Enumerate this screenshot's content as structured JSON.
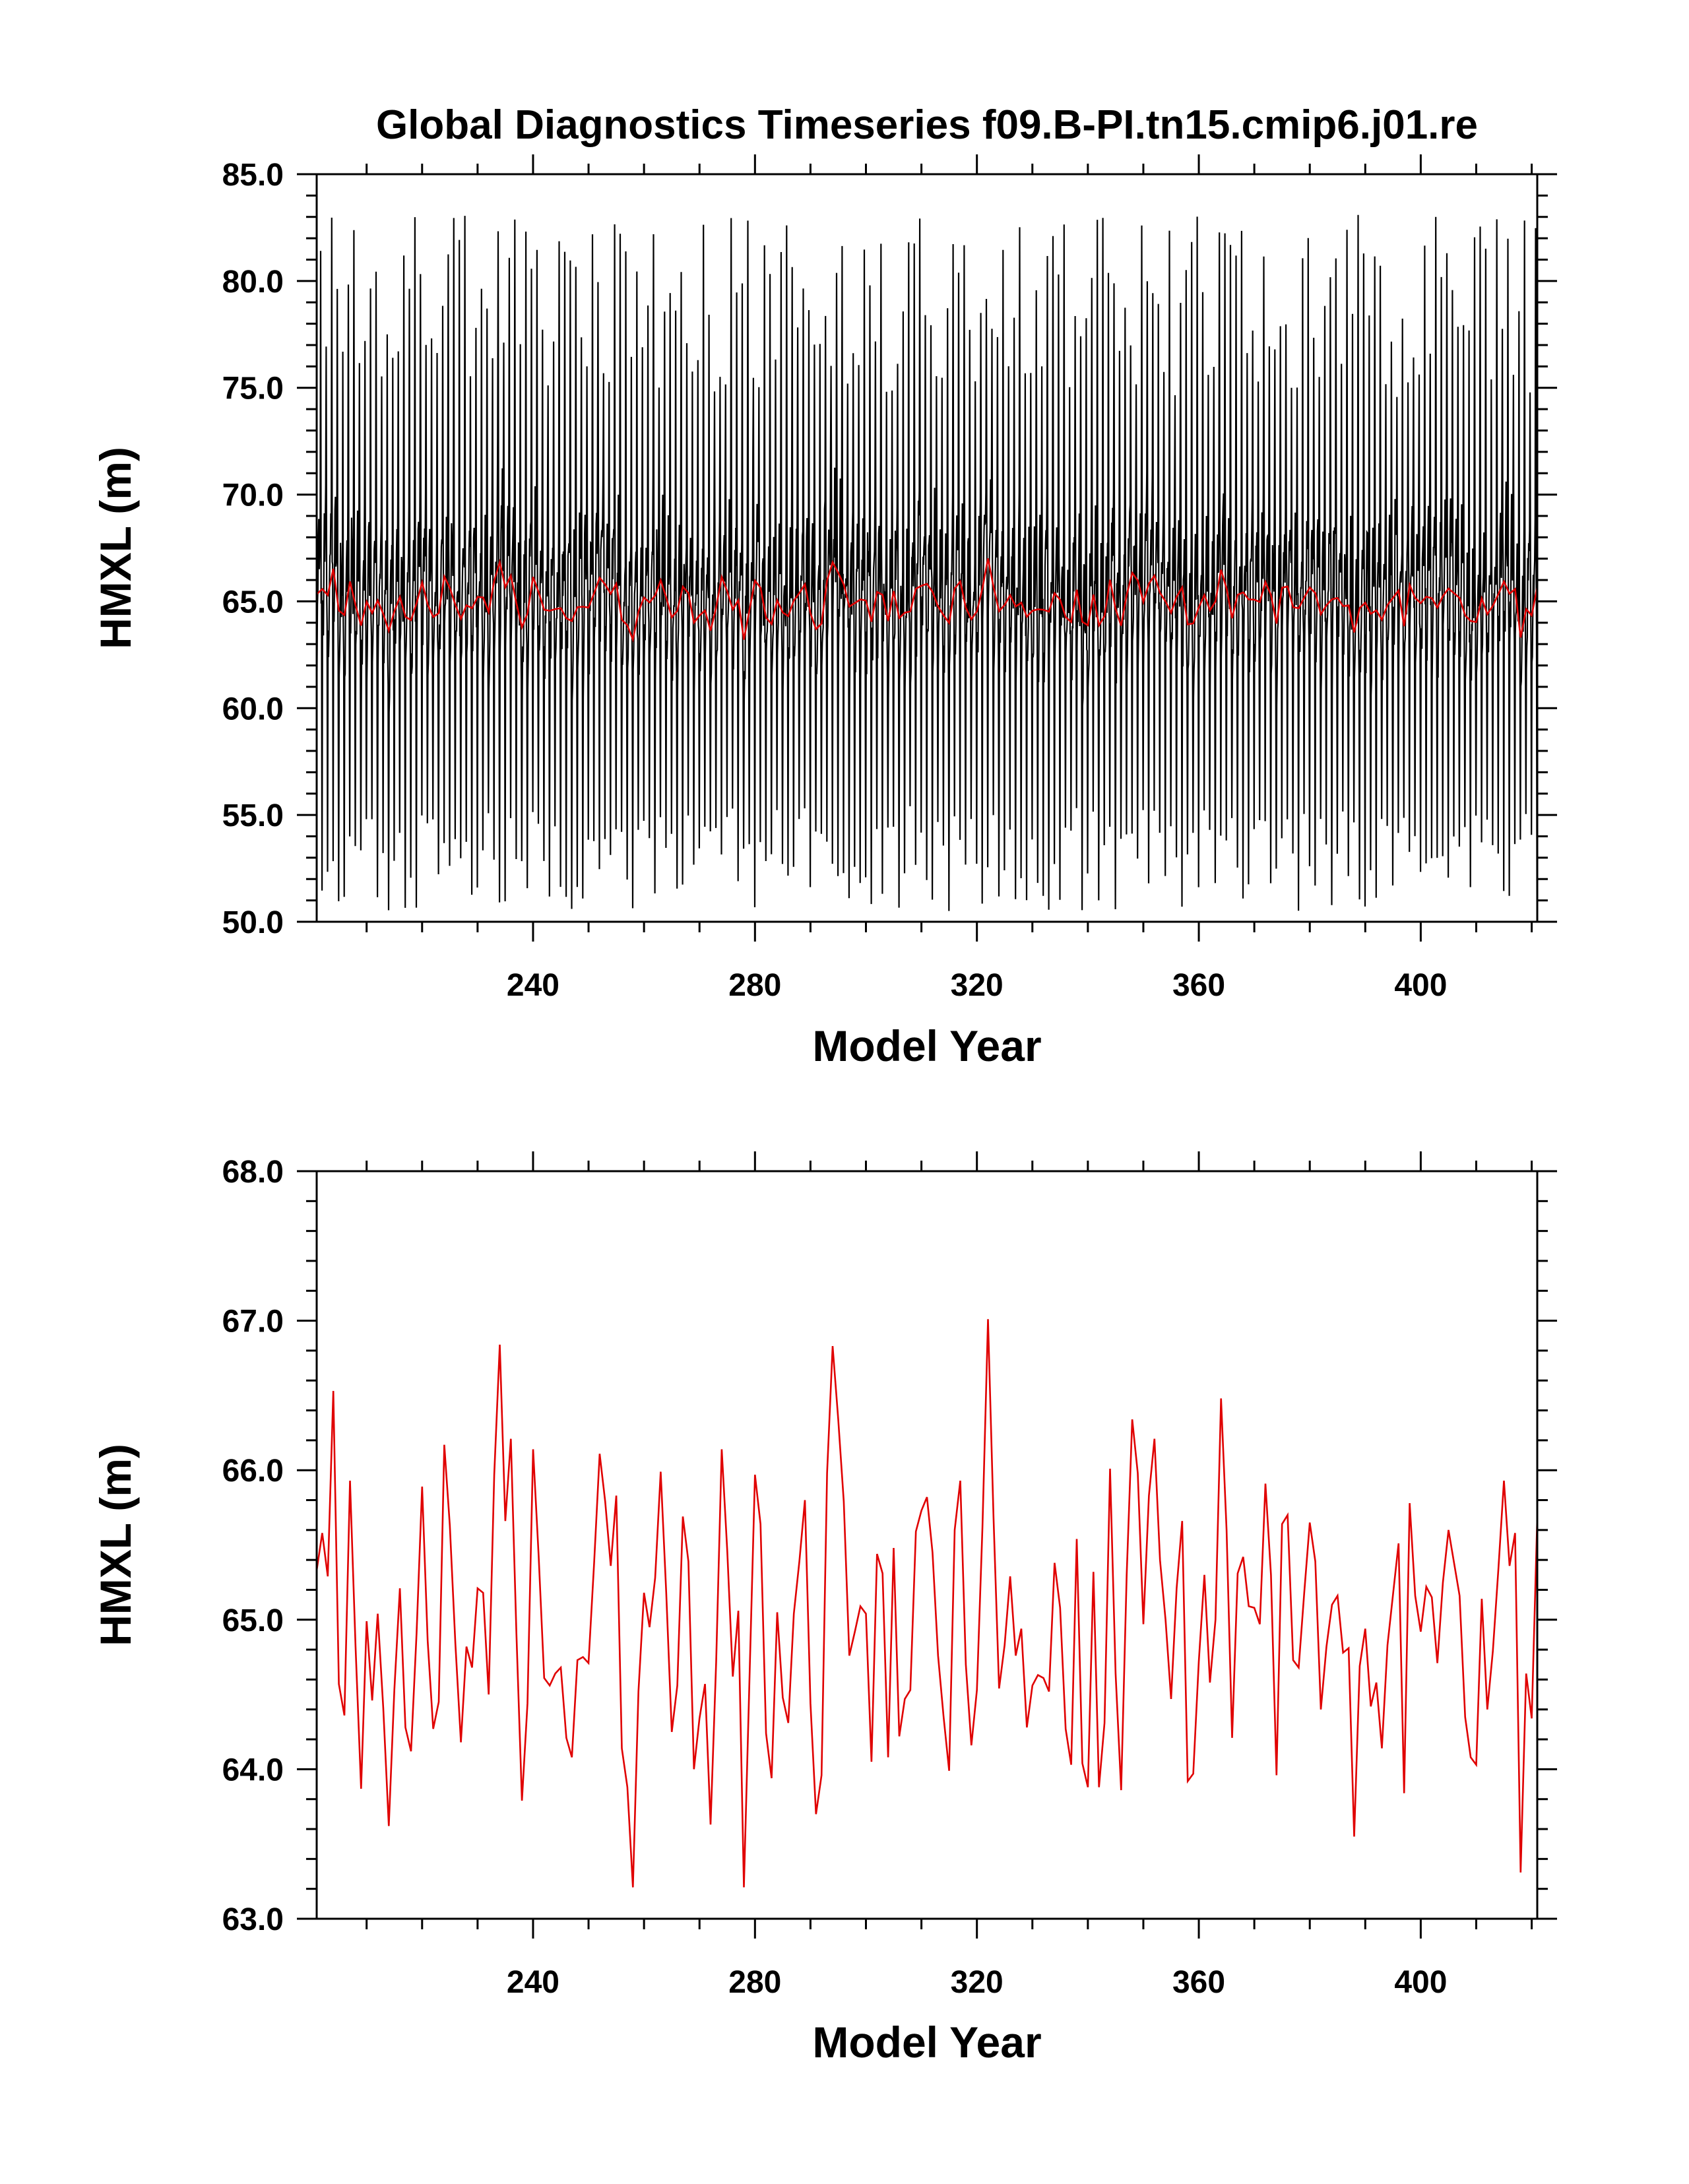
{
  "chart_data": [
    {
      "type": "line",
      "title": "Global Diagnostics Timeseries f09.B-PI.tn15.cmip6.j01.re",
      "xlabel": "Model Year",
      "ylabel": "HMXL (m)",
      "xlim": [
        201,
        421
      ],
      "ylim": [
        50.0,
        85.0
      ],
      "x_major_ticks": [
        240,
        280,
        320,
        360,
        400
      ],
      "y_major_ticks": [
        50.0,
        55.0,
        60.0,
        65.0,
        70.0,
        75.0,
        80.0,
        85.0
      ],
      "x_tick_labels": [
        "240",
        "280",
        "320",
        "360",
        "400"
      ],
      "y_tick_labels": [
        "50.0",
        "55.0",
        "60.0",
        "65.0",
        "70.0",
        "75.0",
        "80.0",
        "85.0"
      ],
      "grid": false,
      "legend": "none",
      "series": [
        {
          "role": "monthly",
          "color": "#000000",
          "annual_cycle_approx": {
            "max_range": [
              74.5,
              83.2
            ],
            "min_range": [
              50.5,
              55.5
            ],
            "overall_min": 50.5,
            "overall_max": 83.2
          }
        },
        {
          "role": "annual_mean",
          "color": "#e00000",
          "ref": "chart_data.1.series.0"
        }
      ]
    },
    {
      "type": "line",
      "title": "",
      "xlabel": "Model Year",
      "ylabel": "HMXL (m)",
      "xlim": [
        201,
        421
      ],
      "ylim": [
        63.0,
        68.0
      ],
      "x_major_ticks": [
        240,
        280,
        320,
        360,
        400
      ],
      "y_major_ticks": [
        63.0,
        64.0,
        65.0,
        66.0,
        67.0,
        68.0
      ],
      "x_tick_labels": [
        "240",
        "280",
        "320",
        "360",
        "400"
      ],
      "y_tick_labels": [
        "63.0",
        "64.0",
        "65.0",
        "66.0",
        "67.0",
        "68.0"
      ],
      "grid": false,
      "legend": "none",
      "series": [
        {
          "role": "annual_mean",
          "color": "#e00000",
          "x_start": 201,
          "x_step": 1,
          "values": [
            65.33,
            65.58,
            65.29,
            66.53,
            64.57,
            64.36,
            65.93,
            64.82,
            63.87,
            64.99,
            64.46,
            65.04,
            64.41,
            63.62,
            64.53,
            65.21,
            64.28,
            64.12,
            64.91,
            65.89,
            64.86,
            64.27,
            64.45,
            66.17,
            65.63,
            64.84,
            64.18,
            64.82,
            64.68,
            65.21,
            65.18,
            64.5,
            65.97,
            66.84,
            65.66,
            66.21,
            64.91,
            63.79,
            64.44,
            66.14,
            65.43,
            64.61,
            64.56,
            64.64,
            64.68,
            64.21,
            64.08,
            64.73,
            64.75,
            64.71,
            65.38,
            66.11,
            65.79,
            65.36,
            65.83,
            64.14,
            63.88,
            63.21,
            64.52,
            65.18,
            64.95,
            65.28,
            65.99,
            65.18,
            64.25,
            64.56,
            65.69,
            65.39,
            64.0,
            64.34,
            64.57,
            63.63,
            64.72,
            66.14,
            65.46,
            64.62,
            65.06,
            63.21,
            64.59,
            65.97,
            65.64,
            64.24,
            63.94,
            65.05,
            64.48,
            64.31,
            65.04,
            65.39,
            65.8,
            64.44,
            63.7,
            63.96,
            65.98,
            66.83,
            66.34,
            65.79,
            64.76,
            64.92,
            65.09,
            65.04,
            64.05,
            65.44,
            65.31,
            64.08,
            65.48,
            64.22,
            64.47,
            64.53,
            65.59,
            65.73,
            65.82,
            65.45,
            64.76,
            64.35,
            63.99,
            65.6,
            65.93,
            64.7,
            64.16,
            64.53,
            65.62,
            67.01,
            65.68,
            64.54,
            64.83,
            65.29,
            64.76,
            64.94,
            64.28,
            64.56,
            64.63,
            64.61,
            64.52,
            65.38,
            65.08,
            64.27,
            64.03,
            65.54,
            64.04,
            63.88,
            65.32,
            63.88,
            64.31,
            66.01,
            64.64,
            63.86,
            65.3,
            66.34,
            65.98,
            64.97,
            65.83,
            66.21,
            65.4,
            65.0,
            64.47,
            65.21,
            65.66,
            63.92,
            63.97,
            64.72,
            65.3,
            64.58,
            65.0,
            66.48,
            65.6,
            64.21,
            65.31,
            65.42,
            65.09,
            65.08,
            64.97,
            65.91,
            65.3,
            63.96,
            65.64,
            65.7,
            64.73,
            64.68,
            65.18,
            65.65,
            65.39,
            64.4,
            64.82,
            65.1,
            65.16,
            64.78,
            64.81,
            63.55,
            64.69,
            64.94,
            64.42,
            64.58,
            64.14,
            64.83,
            65.17,
            65.51,
            63.84,
            65.78,
            65.16,
            64.92,
            65.22,
            65.15,
            64.71,
            65.25,
            65.6,
            65.38,
            65.16,
            64.35,
            64.08,
            64.03,
            65.14,
            64.4,
            64.79,
            65.34,
            65.93,
            65.36,
            65.58,
            63.31,
            64.64,
            64.34,
            65.68,
            65.05,
            65.03
          ]
        }
      ]
    }
  ]
}
